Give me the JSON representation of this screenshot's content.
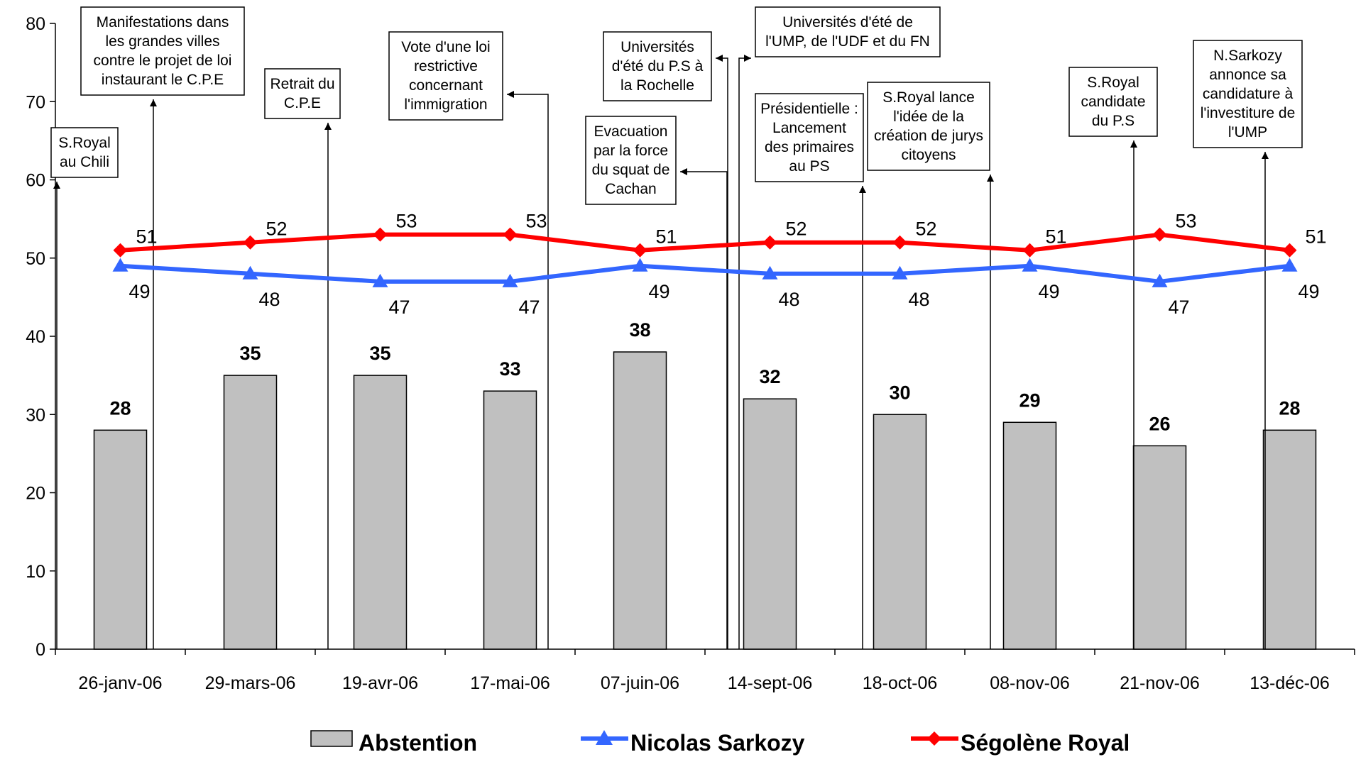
{
  "chart_data": {
    "type": "bar",
    "title": "",
    "xlabel": "",
    "ylabel": "",
    "ylim": [
      0,
      80
    ],
    "yticks": [
      0,
      10,
      20,
      30,
      40,
      50,
      60,
      70,
      80
    ],
    "grid": false,
    "legend_position": "bottom",
    "categories": [
      "26-janv-06",
      "29-mars-06",
      "19-avr-06",
      "17-mai-06",
      "07-juin-06",
      "14-sept-06",
      "18-oct-06",
      "08-nov-06",
      "21-nov-06",
      "13-déc-06"
    ],
    "series": [
      {
        "name": "Abstention",
        "type": "bar",
        "color": "#c0c0c0",
        "values": [
          28,
          35,
          35,
          33,
          38,
          32,
          30,
          29,
          26,
          28
        ]
      },
      {
        "name": "Nicolas Sarkozy",
        "type": "line",
        "marker": "triangle",
        "color": "#3366ff",
        "values": [
          49,
          48,
          47,
          47,
          49,
          48,
          48,
          49,
          47,
          49
        ]
      },
      {
        "name": "Ségolène Royal",
        "type": "line",
        "marker": "diamond",
        "color": "#ff0000",
        "values": [
          51,
          52,
          53,
          53,
          51,
          52,
          52,
          51,
          53,
          51
        ]
      }
    ],
    "annotations": [
      {
        "lines": [
          "S.Royal",
          "au Chili"
        ]
      },
      {
        "lines": [
          "Manifestations dans",
          "les grandes villes",
          "contre le projet de loi",
          "instaurant le C.P.E"
        ]
      },
      {
        "lines": [
          "Retrait du",
          "C.P.E"
        ]
      },
      {
        "lines": [
          "Vote d'une loi",
          "restrictive",
          "concernant",
          "l'immigration"
        ]
      },
      {
        "lines": [
          "Evacuation",
          "par la force",
          "du squat de",
          "Cachan"
        ]
      },
      {
        "lines": [
          "Universités",
          "d'été du P.S à",
          "la Rochelle"
        ]
      },
      {
        "lines": [
          "Universités d'été de",
          "l'UMP, de l'UDF et du FN"
        ]
      },
      {
        "lines": [
          "Présidentielle :",
          "Lancement",
          "des primaires",
          "au PS"
        ]
      },
      {
        "lines": [
          "S.Royal lance",
          "l'idée de la",
          "création de jurys",
          "citoyens"
        ]
      },
      {
        "lines": [
          "S.Royal",
          "candidate",
          "du P.S"
        ]
      },
      {
        "lines": [
          "N.Sarkozy",
          "annonce sa",
          "candidature à",
          "l'investiture de",
          "l'UMP"
        ]
      }
    ]
  }
}
